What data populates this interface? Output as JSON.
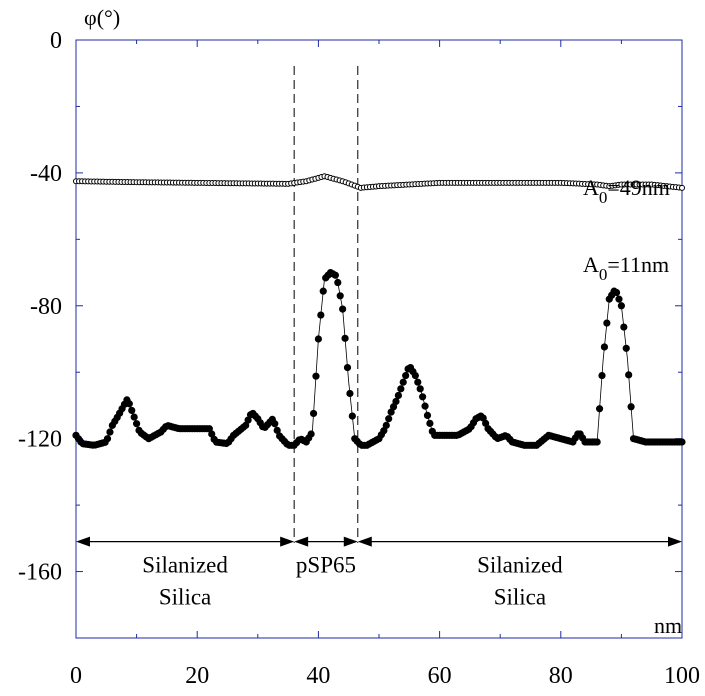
{
  "chart_data": {
    "type": "scatter",
    "title": "",
    "xlabel": "nm",
    "ylabel": "φ(°)",
    "xlim": [
      0,
      100
    ],
    "ylim": [
      -180,
      0
    ],
    "x_ticks": [
      0,
      20,
      40,
      60,
      80,
      100
    ],
    "y_ticks": [
      0,
      -40,
      -80,
      -120,
      -160
    ],
    "x_tick_labels": [
      "0",
      "20",
      "40",
      "60",
      "80",
      "100"
    ],
    "y_tick_labels": [
      "0",
      "-40",
      "-80",
      "-120",
      "-160"
    ],
    "grid": false,
    "legend": "none",
    "series": [
      {
        "name": "A0=49nm",
        "marker": "open-circle",
        "label_main": "A",
        "label_sub": "0",
        "label_rest": "=49nm",
        "points": [
          [
            0,
            -42.5
          ],
          [
            10,
            -42.8
          ],
          [
            20,
            -43
          ],
          [
            30,
            -43.2
          ],
          [
            35,
            -43.3
          ],
          [
            38,
            -42.5
          ],
          [
            41,
            -41
          ],
          [
            44,
            -42.5
          ],
          [
            47,
            -44.5
          ],
          [
            50,
            -44
          ],
          [
            55,
            -43.5
          ],
          [
            60,
            -43
          ],
          [
            70,
            -43
          ],
          [
            80,
            -43
          ],
          [
            86,
            -43.5
          ],
          [
            88,
            -44
          ],
          [
            90,
            -43.5
          ],
          [
            95,
            -43.5
          ],
          [
            100,
            -44.5
          ]
        ]
      },
      {
        "name": "A0=11nm",
        "marker": "filled-circle",
        "label_main": "A",
        "label_sub": "0",
        "label_rest": "=11nm",
        "points": [
          [
            0,
            -119
          ],
          [
            1,
            -121.5
          ],
          [
            3,
            -122
          ],
          [
            5,
            -121
          ],
          [
            6,
            -116
          ],
          [
            7,
            -113
          ],
          [
            8.5,
            -108
          ],
          [
            9.5,
            -113
          ],
          [
            10.5,
            -118
          ],
          [
            12,
            -120
          ],
          [
            14,
            -118
          ],
          [
            15,
            -116
          ],
          [
            17,
            -117
          ],
          [
            20,
            -117
          ],
          [
            22,
            -117
          ],
          [
            23,
            -121
          ],
          [
            25,
            -121.5
          ],
          [
            26,
            -119
          ],
          [
            28,
            -116
          ],
          [
            29,
            -112
          ],
          [
            30,
            -114
          ],
          [
            31,
            -117
          ],
          [
            32.5,
            -114
          ],
          [
            33.5,
            -119
          ],
          [
            35,
            -122
          ],
          [
            36,
            -122
          ],
          [
            37,
            -120
          ],
          [
            38,
            -121
          ],
          [
            39,
            -118
          ],
          [
            40,
            -90
          ],
          [
            41,
            -72
          ],
          [
            42,
            -70
          ],
          [
            43,
            -71
          ],
          [
            44,
            -81
          ],
          [
            45,
            -103
          ],
          [
            46,
            -120
          ],
          [
            47,
            -122
          ],
          [
            48,
            -122
          ],
          [
            50,
            -120
          ],
          [
            51,
            -117
          ],
          [
            52,
            -112
          ],
          [
            53,
            -108
          ],
          [
            54,
            -103
          ],
          [
            55,
            -98
          ],
          [
            56,
            -101
          ],
          [
            57,
            -106
          ],
          [
            58,
            -113
          ],
          [
            59,
            -119
          ],
          [
            62,
            -119
          ],
          [
            63,
            -119
          ],
          [
            65,
            -117
          ],
          [
            66,
            -114
          ],
          [
            67,
            -113
          ],
          [
            68,
            -117
          ],
          [
            69.5,
            -120
          ],
          [
            71,
            -119
          ],
          [
            72,
            -121
          ],
          [
            74,
            -122
          ],
          [
            76,
            -122
          ],
          [
            78,
            -119
          ],
          [
            80,
            -120
          ],
          [
            82,
            -121
          ],
          [
            83,
            -118
          ],
          [
            84,
            -121
          ],
          [
            86,
            -121
          ],
          [
            87,
            -96
          ],
          [
            88,
            -78
          ],
          [
            89,
            -75
          ],
          [
            90,
            -80
          ],
          [
            91,
            -96
          ],
          [
            92,
            -120
          ],
          [
            94,
            -121
          ],
          [
            97,
            -121
          ],
          [
            100,
            -121
          ]
        ]
      }
    ],
    "markers": [
      {
        "type": "dashed-vline",
        "x": 36
      },
      {
        "type": "dashed-vline",
        "x": 46.5
      }
    ],
    "region_arrows": [
      {
        "y": -151,
        "from": 0,
        "to": 36,
        "label_lines": [
          "Silanized",
          "Silica"
        ]
      },
      {
        "y": -151,
        "from": 36,
        "to": 46.5,
        "label_lines": [
          "pSP65"
        ]
      },
      {
        "y": -151,
        "from": 46.5,
        "to": 100,
        "label_lines": [
          "Silanized",
          "Silica"
        ]
      }
    ]
  }
}
